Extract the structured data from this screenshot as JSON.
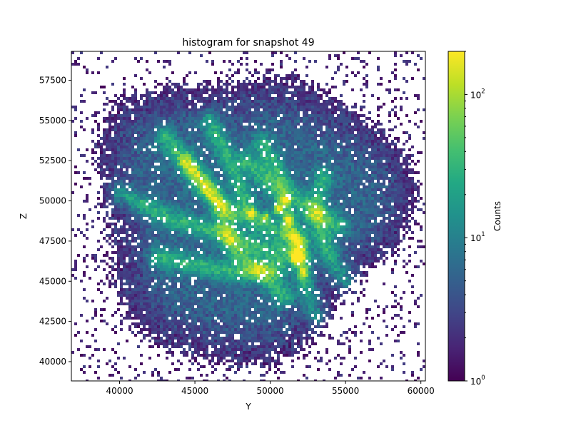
{
  "chart_data": {
    "type": "heatmap",
    "title": "histogram for snapshot 49",
    "xlabel": "Y",
    "ylabel": "Z",
    "xlim": [
      36800,
      60300
    ],
    "ylim": [
      38800,
      59300
    ],
    "xticks": [
      40000,
      45000,
      50000,
      55000,
      60000
    ],
    "xtick_labels": [
      "40000",
      "45000",
      "50000",
      "55000",
      "60000"
    ],
    "yticks": [
      40000,
      42500,
      45000,
      47500,
      50000,
      52500,
      55000,
      57500
    ],
    "ytick_labels": [
      "40000",
      "42500",
      "45000",
      "47500",
      "50000",
      "52500",
      "55000",
      "57500"
    ],
    "grid": false,
    "colormap": "viridis",
    "color_scale": "log",
    "colorbar": {
      "label": "Counts",
      "range": [
        1,
        200
      ],
      "major_ticks": [
        1,
        10,
        100
      ],
      "major_tick_labels": [
        "10",
        "10",
        "10"
      ],
      "major_tick_exponents": [
        "0",
        "1",
        "2"
      ],
      "minor_ticks": [
        2,
        3,
        4,
        5,
        6,
        7,
        8,
        9,
        20,
        30,
        40,
        50,
        60,
        70,
        80,
        90,
        200
      ]
    },
    "colors": {
      "low": "#440154",
      "mid": "#21918c",
      "high": "#fde725",
      "background": "#ffffff"
    }
  }
}
